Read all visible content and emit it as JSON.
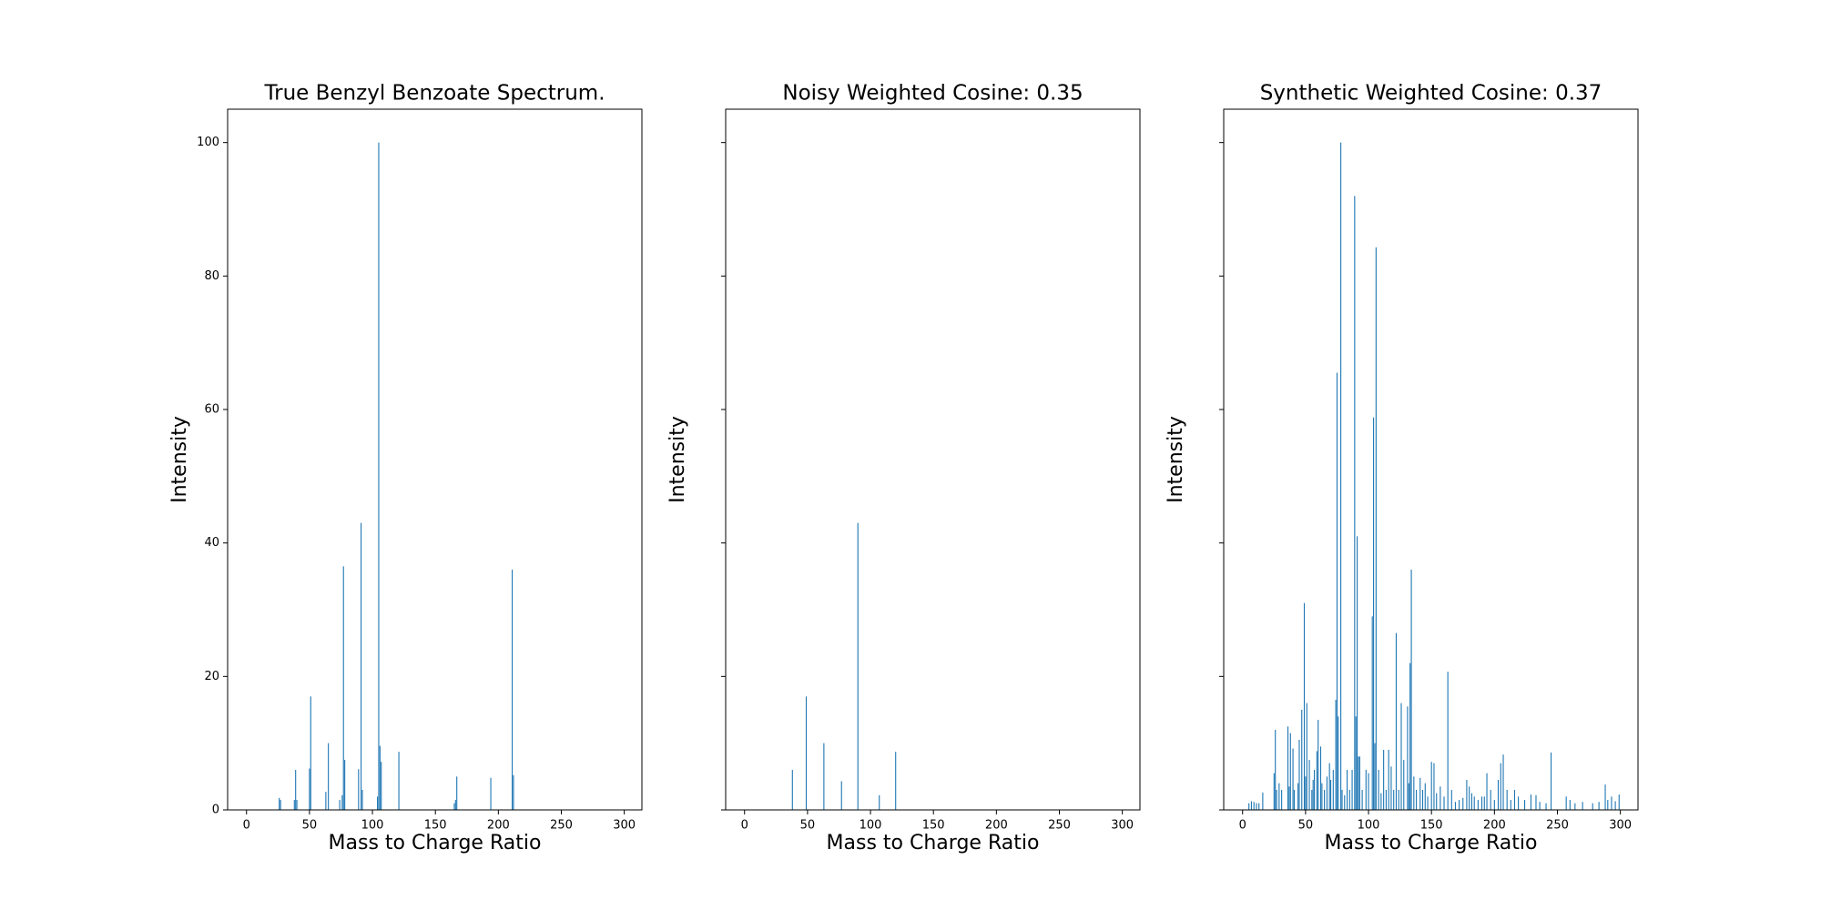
{
  "chart_data": [
    {
      "type": "bar",
      "title": "True Benzyl Benzoate Spectrum.",
      "xlabel": "Mass to Charge Ratio",
      "ylabel": "Intensity",
      "color": "#1f77b4",
      "x": [
        26,
        27,
        38,
        39,
        40,
        50,
        51,
        63,
        65,
        74,
        76,
        77,
        78,
        89,
        91,
        92,
        104,
        105,
        106,
        107,
        121,
        165,
        166,
        167,
        194,
        211,
        212
      ],
      "values": [
        1.8,
        1.5,
        1.5,
        6,
        1.5,
        6.2,
        17,
        2.7,
        10,
        1.5,
        2.2,
        36.5,
        7.5,
        6.1,
        43,
        3,
        2,
        100,
        9.6,
        7.2,
        8.7,
        1,
        1.5,
        5,
        4.8,
        36,
        5.2
      ],
      "xlim": [
        -15,
        314
      ],
      "ylim": [
        0,
        105
      ],
      "xticks": [
        0,
        50,
        100,
        150,
        200,
        250,
        300
      ],
      "yticks": [
        0,
        20,
        40,
        60,
        80,
        100
      ],
      "ytick_labels": true
    },
    {
      "type": "bar",
      "title": "Noisy Weighted Cosine: 0.35",
      "xlabel": "Mass to Charge Ratio",
      "ylabel": "Intensity",
      "color": "#1f77b4",
      "x": [
        38,
        49,
        63,
        77,
        90,
        107,
        120
      ],
      "values": [
        6,
        17,
        10,
        4.3,
        43,
        2.2,
        8.7
      ],
      "xlim": [
        -15,
        314
      ],
      "ylim": [
        0,
        105
      ],
      "xticks": [
        0,
        50,
        100,
        150,
        200,
        250,
        300
      ],
      "yticks": [
        0,
        20,
        40,
        60,
        80,
        100
      ],
      "ytick_labels": false
    },
    {
      "type": "bar",
      "title": "Synthetic Weighted Cosine: 0.37",
      "xlabel": "Mass to Charge Ratio",
      "ylabel": "Intensity",
      "color": "#1f77b4",
      "x": [
        5,
        7,
        9,
        11,
        13,
        16,
        25,
        26,
        27,
        29,
        31,
        36,
        37,
        38,
        40,
        41,
        44,
        45,
        47,
        49,
        50,
        51,
        53,
        55,
        56,
        57,
        59,
        60,
        62,
        63,
        65,
        67,
        69,
        70,
        72,
        74,
        75,
        76,
        78,
        79,
        81,
        83,
        85,
        87,
        89,
        90,
        91,
        92,
        93,
        95,
        98,
        100,
        103,
        104,
        105,
        106,
        108,
        110,
        112,
        114,
        116,
        118,
        120,
        122,
        124,
        126,
        128,
        131,
        132,
        133,
        134,
        136,
        138,
        141,
        143,
        145,
        147,
        150,
        152,
        154,
        157,
        160,
        163,
        166,
        169,
        172,
        175,
        178,
        180,
        182,
        184,
        187,
        190,
        192,
        194,
        197,
        200,
        203,
        205,
        207,
        210,
        213,
        216,
        219,
        224,
        229,
        233,
        236,
        241,
        245,
        257,
        260,
        264,
        270,
        278,
        283,
        288,
        290,
        293,
        296,
        299
      ],
      "values": [
        1,
        1.3,
        1.2,
        1,
        1,
        2.6,
        5.5,
        12,
        3,
        4,
        3,
        12.5,
        3.5,
        11.5,
        9.2,
        3,
        4,
        10.5,
        15,
        31,
        5,
        16,
        7.5,
        3,
        4.5,
        6,
        8.8,
        13.5,
        9.5,
        4,
        3,
        5,
        7,
        4.5,
        6,
        16.5,
        65.5,
        14,
        100,
        3,
        2.2,
        6,
        3,
        6,
        92,
        14,
        41,
        8,
        8,
        3,
        6,
        5.5,
        29,
        58.8,
        10,
        84.3,
        6,
        2.5,
        9,
        3,
        9,
        6.5,
        3,
        26.5,
        3,
        16,
        7.5,
        15.5,
        4,
        22,
        36,
        5,
        3,
        4.8,
        3,
        4,
        2,
        7.2,
        7,
        2.5,
        3.5,
        2,
        20.7,
        3,
        1.2,
        1.5,
        1.8,
        4.5,
        3.5,
        2.5,
        2,
        1.5,
        2,
        2,
        5.5,
        3,
        1.5,
        4.5,
        7,
        8.3,
        3,
        1.5,
        3,
        2,
        1.5,
        2.3,
        2.2,
        1.2,
        1,
        8.6,
        2,
        1.5,
        1,
        1.2,
        1,
        1.2,
        3.8,
        1.5,
        2,
        1.3,
        2.3
      ],
      "xlim": [
        -15,
        314
      ],
      "ylim": [
        0,
        105
      ],
      "xticks": [
        0,
        50,
        100,
        150,
        200,
        250,
        300
      ],
      "yticks": [
        0,
        20,
        40,
        60,
        80,
        100
      ],
      "ytick_labels": false
    }
  ]
}
